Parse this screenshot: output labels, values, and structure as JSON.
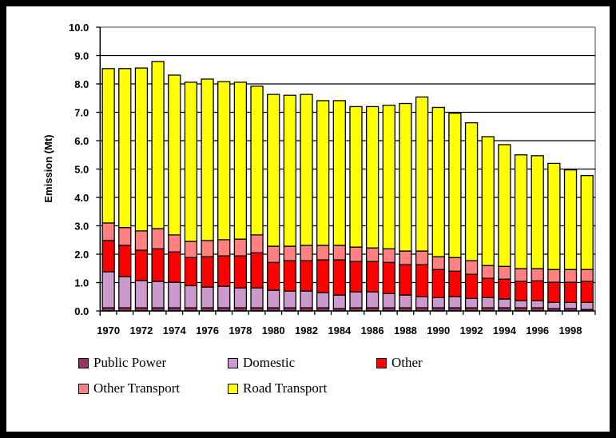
{
  "chart_data": {
    "type": "bar",
    "stacked": true,
    "title": "",
    "xlabel": "",
    "ylabel": "Emission (Mt)",
    "ylim": [
      0,
      10
    ],
    "yticks": [
      "0.0",
      "1.0",
      "2.0",
      "3.0",
      "4.0",
      "5.0",
      "6.0",
      "7.0",
      "8.0",
      "9.0",
      "10.0"
    ],
    "grid": true,
    "legend_position": "bottom",
    "categories": [
      "1970",
      "1971",
      "1972",
      "1973",
      "1974",
      "1975",
      "1976",
      "1977",
      "1978",
      "1979",
      "1980",
      "1981",
      "1982",
      "1983",
      "1984",
      "1985",
      "1986",
      "1987",
      "1988",
      "1989",
      "1990",
      "1991",
      "1992",
      "1993",
      "1994",
      "1995",
      "1996",
      "1997",
      "1998",
      "1999"
    ],
    "xtick_labels": [
      "1970",
      "1972",
      "1974",
      "1976",
      "1978",
      "1980",
      "1982",
      "1984",
      "1986",
      "1988",
      "1990",
      "1992",
      "1994",
      "1996",
      "1998"
    ],
    "series": [
      {
        "name": "Public Power",
        "color": "#993366",
        "values": [
          0.11,
          0.11,
          0.11,
          0.11,
          0.11,
          0.11,
          0.11,
          0.11,
          0.11,
          0.11,
          0.11,
          0.11,
          0.11,
          0.11,
          0.08,
          0.11,
          0.11,
          0.11,
          0.11,
          0.11,
          0.11,
          0.11,
          0.11,
          0.11,
          0.11,
          0.11,
          0.11,
          0.08,
          0.08,
          0.05
        ]
      },
      {
        "name": "Domestic",
        "color": "#CC99CC",
        "values": [
          1.27,
          1.1,
          0.96,
          0.93,
          0.9,
          0.78,
          0.73,
          0.76,
          0.7,
          0.7,
          0.62,
          0.59,
          0.59,
          0.53,
          0.48,
          0.56,
          0.56,
          0.5,
          0.45,
          0.39,
          0.36,
          0.39,
          0.33,
          0.36,
          0.31,
          0.25,
          0.25,
          0.22,
          0.22,
          0.25
        ]
      },
      {
        "name": "Other",
        "color": "#FF0000",
        "values": [
          1.1,
          1.1,
          1.07,
          1.15,
          1.07,
          0.99,
          1.07,
          1.07,
          1.13,
          1.24,
          0.98,
          1.07,
          1.07,
          1.16,
          1.24,
          1.07,
          1.07,
          1.1,
          1.07,
          1.13,
          0.99,
          0.9,
          0.85,
          0.68,
          0.7,
          0.68,
          0.7,
          0.71,
          0.71,
          0.74
        ]
      },
      {
        "name": "Other Transport",
        "color": "#FF8080",
        "values": [
          0.62,
          0.63,
          0.68,
          0.71,
          0.6,
          0.57,
          0.57,
          0.57,
          0.59,
          0.63,
          0.57,
          0.51,
          0.54,
          0.51,
          0.51,
          0.51,
          0.48,
          0.48,
          0.48,
          0.48,
          0.45,
          0.48,
          0.48,
          0.45,
          0.45,
          0.45,
          0.43,
          0.45,
          0.45,
          0.42
        ]
      },
      {
        "name": "Road Transport",
        "color": "#FFFF00",
        "values": [
          5.44,
          5.6,
          5.74,
          5.89,
          5.63,
          5.61,
          5.69,
          5.57,
          5.53,
          5.24,
          5.35,
          5.32,
          5.32,
          5.1,
          5.1,
          4.95,
          4.98,
          5.06,
          5.2,
          5.43,
          5.26,
          5.09,
          4.86,
          4.54,
          4.29,
          4.01,
          3.98,
          3.74,
          3.51,
          3.31
        ]
      }
    ]
  },
  "legend": {
    "items": [
      {
        "label": "Public Power",
        "color": "#993366"
      },
      {
        "label": "Domestic",
        "color": "#CC99CC"
      },
      {
        "label": "Other",
        "color": "#FF0000"
      },
      {
        "label": "Other Transport",
        "color": "#FF8080"
      },
      {
        "label": "Road Transport",
        "color": "#FFFF00"
      }
    ]
  }
}
